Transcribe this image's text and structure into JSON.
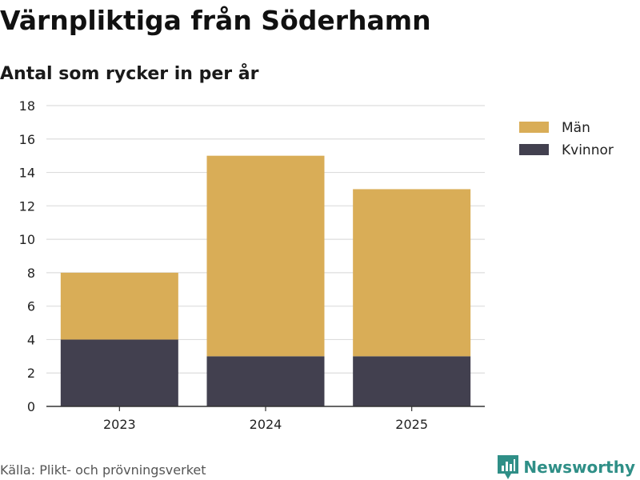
{
  "header": {
    "title": "Värnpliktiga från Söderhamn",
    "subtitle": "Antal som rycker in per år"
  },
  "footer": {
    "source": "Källa: Plikt- och prövningsverket",
    "brand": "Newsworthy"
  },
  "colors": {
    "men": "#d9ad57",
    "women": "#42404f",
    "grid": "#dddddd",
    "axis": "#333333",
    "brand": "#2f8f87"
  },
  "chart_data": {
    "type": "bar",
    "stacked": true,
    "categories": [
      "2023",
      "2024",
      "2025"
    ],
    "series": [
      {
        "name": "Kvinnor",
        "values": [
          4,
          3,
          3
        ],
        "color": "#42404f"
      },
      {
        "name": "Män",
        "values": [
          4,
          12,
          10
        ],
        "color": "#d9ad57"
      }
    ],
    "legend_order": [
      "Män",
      "Kvinnor"
    ],
    "ylim": [
      0,
      18
    ],
    "yticks": [
      0,
      2,
      4,
      6,
      8,
      10,
      12,
      14,
      16,
      18
    ],
    "xlabel": "",
    "ylabel": "",
    "grid": true,
    "legend_position": "top-right"
  }
}
